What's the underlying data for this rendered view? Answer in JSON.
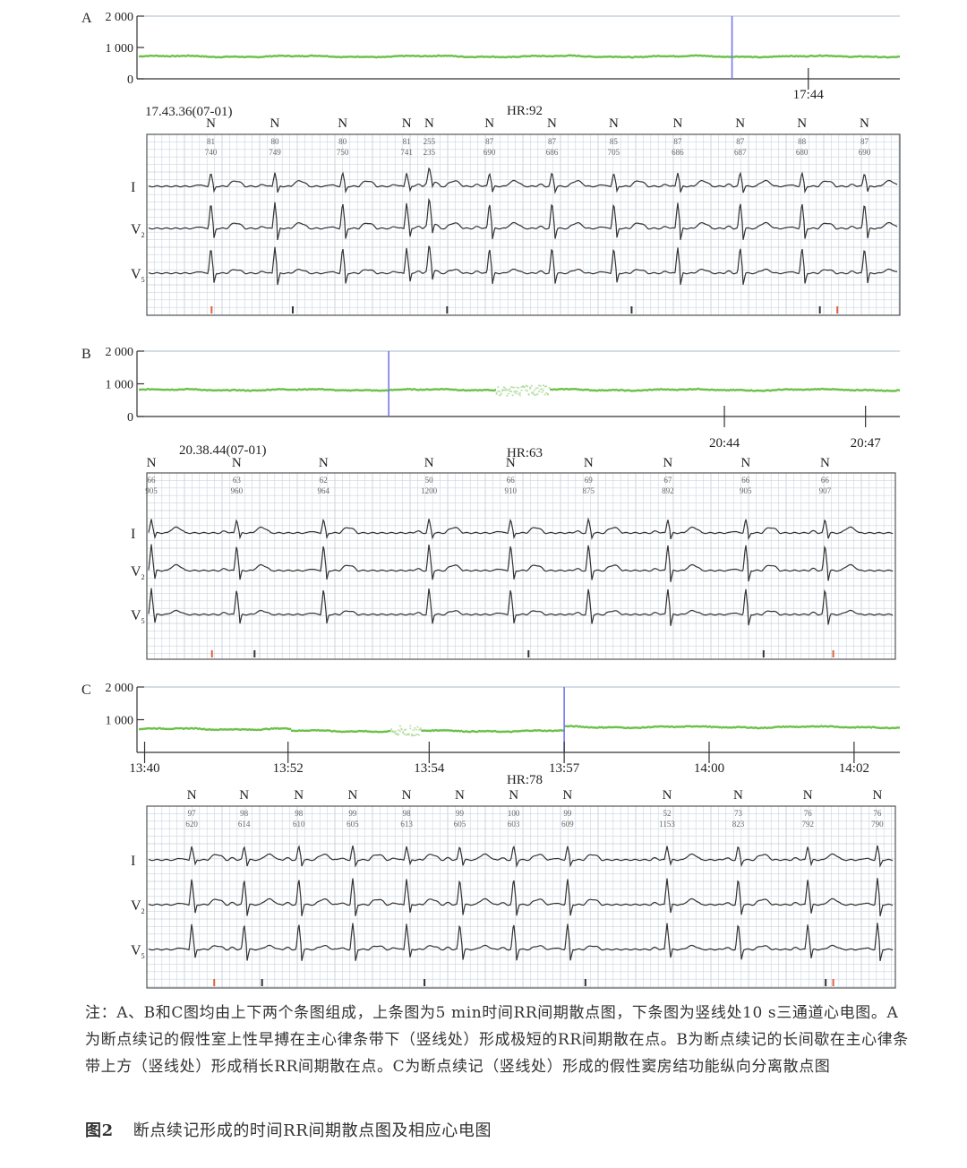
{
  "colors": {
    "scatter": "#6cc04a",
    "vline": "#7777ee",
    "grid": "#c9d6e3",
    "gridMajor": "#aab9c9",
    "trace": "#333333",
    "axis": "#333333",
    "marker": "#e06040"
  },
  "panels": [
    {
      "letter": "A",
      "scatter": {
        "yticks": [
          "2 000",
          "1 000",
          "0"
        ],
        "ymax": 2000,
        "baseline": 720,
        "xticks": [
          {
            "label": "17:44",
            "frac": 0.88
          }
        ],
        "vline_frac": 0.78,
        "dropouts": []
      },
      "ecg": {
        "timestamp": "17.43.36(07-01)",
        "hr": "HR:92",
        "beats": [
          {
            "label": "N",
            "v1": "81",
            "v2": "740",
            "t": 0.085,
            "pm": 0
          },
          {
            "label": "N",
            "v1": "80",
            "v2": "749",
            "t": 0.17,
            "pm": 0
          },
          {
            "label": "N",
            "v1": "80",
            "v2": "750",
            "t": 0.26,
            "pm": 0
          },
          {
            "label": "N",
            "v1": "81",
            "v2": "741",
            "t": 0.345,
            "pm": 0
          },
          {
            "label": "N",
            "v1": "255",
            "v2": "235",
            "t": 0.375,
            "pm": 1
          },
          {
            "label": "N",
            "v1": "87",
            "v2": "690",
            "t": 0.455,
            "pm": 0
          },
          {
            "label": "N",
            "v1": "87",
            "v2": "686",
            "t": 0.538,
            "pm": 0
          },
          {
            "label": "N",
            "v1": "85",
            "v2": "705",
            "t": 0.62,
            "pm": 0
          },
          {
            "label": "N",
            "v1": "87",
            "v2": "686",
            "t": 0.705,
            "pm": 0
          },
          {
            "label": "N",
            "v1": "87",
            "v2": "687",
            "t": 0.788,
            "pm": 0
          },
          {
            "label": "N",
            "v1": "88",
            "v2": "680",
            "t": 0.87,
            "pm": 0
          },
          {
            "label": "N",
            "v1": "87",
            "v2": "690",
            "t": 0.953,
            "pm": 0
          }
        ]
      }
    },
    {
      "letter": "B",
      "scatter": {
        "yticks": [
          "2 000",
          "1 000",
          "0"
        ],
        "ymax": 2000,
        "baseline": 820,
        "xticks": [
          {
            "label": "20:44",
            "frac": 0.77
          },
          {
            "label": "20:47",
            "frac": 0.955
          }
        ],
        "vline_frac": 0.33,
        "dropouts": [
          [
            0.47,
            0.54
          ]
        ]
      },
      "ecg": {
        "timestamp": "20.38.44(07-01)",
        "hr": "HR:63",
        "beats": [
          {
            "label": "N",
            "v1": "66",
            "v2": "905",
            "t": 0.006,
            "pm": 0
          },
          {
            "label": "N",
            "v1": "63",
            "v2": "960",
            "t": 0.12,
            "pm": 0
          },
          {
            "label": "N",
            "v1": "62",
            "v2": "964",
            "t": 0.236,
            "pm": 0
          },
          {
            "label": "N",
            "v1": "50",
            "v2": "1200",
            "t": 0.377,
            "pm": 0
          },
          {
            "label": "N",
            "v1": "66",
            "v2": "910",
            "t": 0.486,
            "pm": 0
          },
          {
            "label": "N",
            "v1": "69",
            "v2": "875",
            "t": 0.59,
            "pm": 0
          },
          {
            "label": "N",
            "v1": "67",
            "v2": "892",
            "t": 0.696,
            "pm": 0
          },
          {
            "label": "N",
            "v1": "66",
            "v2": "905",
            "t": 0.8,
            "pm": 0
          },
          {
            "label": "N",
            "v1": "66",
            "v2": "907",
            "t": 0.906,
            "pm": 0
          }
        ]
      }
    },
    {
      "letter": "C",
      "scatter": {
        "yticks": [
          "2 000",
          "1 000"
        ],
        "ymax": 2000,
        "baseline": 720,
        "baseline2": 780,
        "shift_frac": 0.56,
        "xticks": [
          {
            "label": "13:40",
            "frac": 0.01
          },
          {
            "label": "13:52",
            "frac": 0.198
          },
          {
            "label": "13:54",
            "frac": 0.383
          },
          {
            "label": "13:57",
            "frac": 0.56
          },
          {
            "label": "14:00",
            "frac": 0.75
          },
          {
            "label": "14:02",
            "frac": 0.94
          }
        ],
        "vline_frac": 0.56,
        "dropouts": [
          [
            0.33,
            0.37
          ]
        ]
      },
      "ecg": {
        "timestamp": "",
        "hr": "HR:78",
        "beats": [
          {
            "label": "N",
            "v1": "97",
            "v2": "620",
            "t": 0.06,
            "pm": 0
          },
          {
            "label": "N",
            "v1": "98",
            "v2": "614",
            "t": 0.13,
            "pm": 0
          },
          {
            "label": "N",
            "v1": "98",
            "v2": "610",
            "t": 0.203,
            "pm": 0
          },
          {
            "label": "N",
            "v1": "99",
            "v2": "605",
            "t": 0.275,
            "pm": 0
          },
          {
            "label": "N",
            "v1": "98",
            "v2": "613",
            "t": 0.347,
            "pm": 0
          },
          {
            "label": "N",
            "v1": "99",
            "v2": "605",
            "t": 0.418,
            "pm": 0
          },
          {
            "label": "N",
            "v1": "100",
            "v2": "603",
            "t": 0.49,
            "pm": 0
          },
          {
            "label": "N",
            "v1": "99",
            "v2": "609",
            "t": 0.562,
            "pm": 0
          },
          {
            "label": "N",
            "v1": "52",
            "v2": "1153",
            "t": 0.695,
            "pm": 0
          },
          {
            "label": "N",
            "v1": "73",
            "v2": "823",
            "t": 0.79,
            "pm": 0
          },
          {
            "label": "N",
            "v1": "76",
            "v2": "792",
            "t": 0.883,
            "pm": 0
          },
          {
            "label": "N",
            "v1": "76",
            "v2": "790",
            "t": 0.976,
            "pm": 0
          }
        ]
      }
    }
  ],
  "leads": [
    "I",
    "V",
    "V"
  ],
  "lead_subs": [
    "",
    "2",
    "5"
  ],
  "caption": {
    "note": "注：A、B和C图均由上下两个条图组成，上条图为5 min时间RR间期散点图，下条图为竖线处10 s三通道心电图。A为断点续记的假性室上性早搏在主心律条带下（竖线处）形成极短的RR间期散在点。B为断点续记的长间歇在主心律条带上方（竖线处）形成稍长RR间期散在点。C为断点续记（竖线处）形成的假性窦房结功能纵向分离散点图",
    "fig_label": "图2",
    "fig_title": "断点续记形成的时间RR间期散点图及相应心电图"
  }
}
